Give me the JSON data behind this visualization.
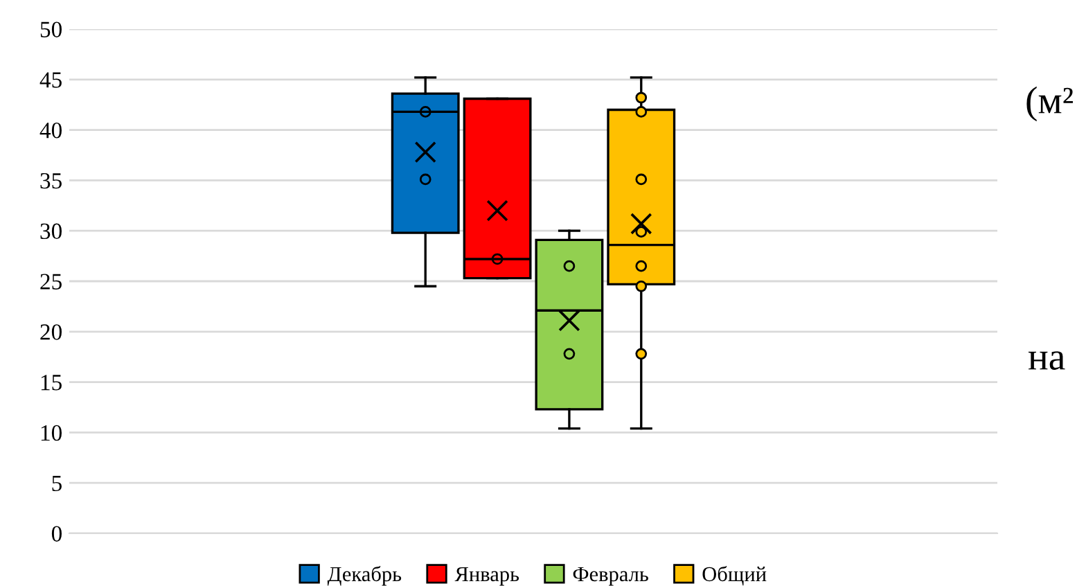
{
  "chart_data": {
    "type": "box",
    "categories": [
      null
    ],
    "ylim": [
      0,
      50
    ],
    "yticks": [
      0,
      5,
      10,
      15,
      20,
      25,
      30,
      35,
      40,
      45,
      50
    ],
    "grid": "y",
    "legend": "bottom",
    "series": [
      {
        "name": "Декабрь",
        "color": "#0070c0",
        "boxes": [
          {
            "low": 24.5,
            "q1": 29.8,
            "median": 41.8,
            "q3": 43.6,
            "high": 45.2,
            "mean": 37.8,
            "outliers": [
              41.8,
              35.1
            ]
          }
        ]
      },
      {
        "name": "Январь",
        "color": "#ff0000",
        "boxes": [
          {
            "low": 25.3,
            "q1": 25.3,
            "median": 27.2,
            "q3": 43.1,
            "high": 43.1,
            "mean": 32.0,
            "outliers": [
              27.2
            ]
          }
        ]
      },
      {
        "name": "Февраль",
        "color": "#92d050",
        "boxes": [
          {
            "low": 10.4,
            "q1": 12.3,
            "median": 22.1,
            "q3": 29.1,
            "high": 30.0,
            "mean": 21.1,
            "outliers": [
              26.5,
              17.8
            ]
          }
        ]
      },
      {
        "name": "Общий",
        "color": "#ffc000",
        "boxes": [
          {
            "low": 10.4,
            "q1": 24.7,
            "median": 28.6,
            "q3": 42.0,
            "high": 45.2,
            "mean": 30.7,
            "outliers": [
              43.2,
              41.8,
              35.1,
              29.9,
              26.5,
              24.5,
              17.8
            ]
          }
        ]
      }
    ],
    "annotations": [
      "(м²",
      "на"
    ]
  }
}
